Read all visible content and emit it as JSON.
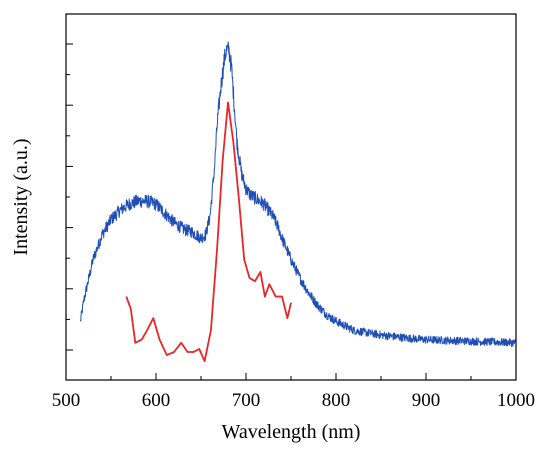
{
  "chart_data": {
    "type": "line",
    "xlabel": "Wavelength (nm)",
    "ylabel": "Intensity (a.u.)",
    "xlim": [
      500,
      1000
    ],
    "ylim": [
      0,
      1
    ],
    "x_ticks": [
      500,
      600,
      700,
      800,
      900,
      1000
    ],
    "y_tick_labels_shown": false,
    "grid": false,
    "legend": "none",
    "series": [
      {
        "color": "#1f4eb4",
        "style": "noisy-line",
        "x": [
          516,
          520,
          530,
          540,
          550,
          560,
          570,
          580,
          590,
          600,
          610,
          620,
          630,
          640,
          650,
          655,
          660,
          665,
          668,
          672,
          676,
          678,
          681,
          684,
          687,
          690,
          695,
          700,
          705,
          710,
          715,
          720,
          725,
          730,
          735,
          740,
          750,
          760,
          770,
          780,
          790,
          800,
          820,
          850,
          880,
          900,
          950,
          1000
        ],
        "y": [
          0.1,
          0.17,
          0.3,
          0.38,
          0.43,
          0.46,
          0.48,
          0.49,
          0.49,
          0.48,
          0.45,
          0.42,
          0.4,
          0.39,
          0.37,
          0.38,
          0.44,
          0.6,
          0.74,
          0.86,
          0.95,
          0.98,
          0.98,
          0.92,
          0.8,
          0.68,
          0.58,
          0.53,
          0.51,
          0.5,
          0.49,
          0.48,
          0.46,
          0.44,
          0.41,
          0.37,
          0.3,
          0.24,
          0.19,
          0.15,
          0.12,
          0.1,
          0.07,
          0.055,
          0.045,
          0.04,
          0.035,
          0.03
        ]
      },
      {
        "color": "#e8262a",
        "style": "line",
        "x": [
          567,
          572,
          577,
          584,
          590,
          597,
          604,
          612,
          620,
          628,
          635,
          642,
          648,
          654,
          661,
          668,
          674,
          680,
          686,
          692,
          698,
          704,
          710,
          716,
          721,
          726,
          733,
          740,
          746,
          750
        ],
        "y": [
          0.18,
          0.14,
          0.03,
          0.04,
          0.07,
          0.11,
          0.04,
          -0.01,
          0.0,
          0.03,
          0.0,
          0.0,
          0.01,
          -0.03,
          0.07,
          0.34,
          0.62,
          0.81,
          0.68,
          0.5,
          0.3,
          0.24,
          0.23,
          0.26,
          0.18,
          0.22,
          0.18,
          0.18,
          0.11,
          0.16
        ]
      }
    ]
  }
}
